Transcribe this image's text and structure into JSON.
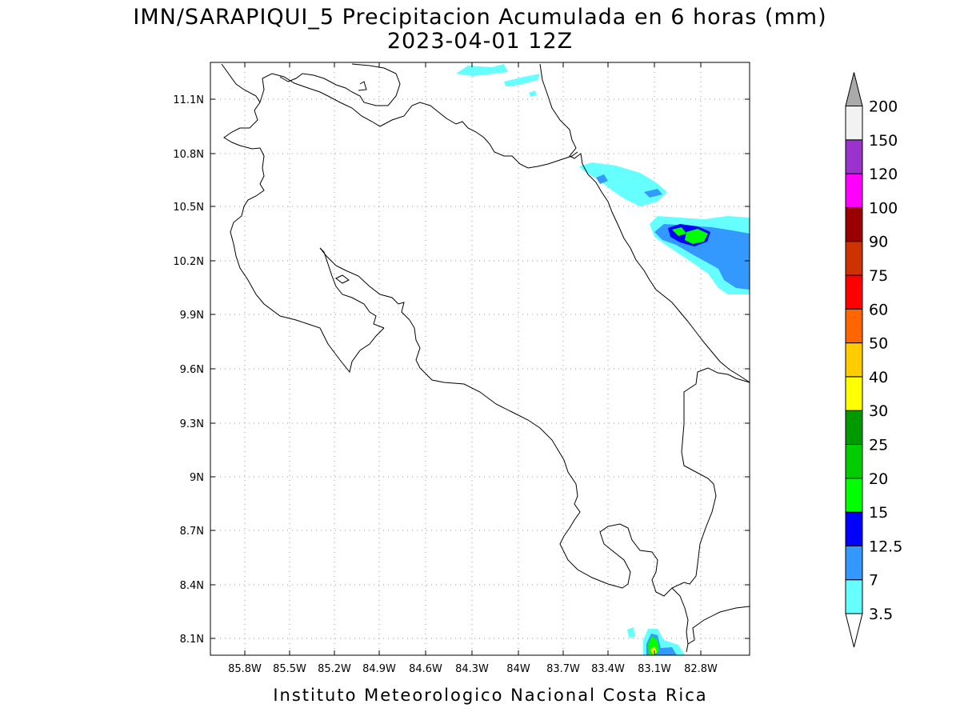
{
  "title": {
    "line1": "IMN/SARAPIQUI_5 Precipitacion Acumulada en 6 horas (mm)",
    "line2": "2023-04-01 12Z"
  },
  "axes": {
    "lon_ticks": [
      "85.8W",
      "85.5W",
      "85.2W",
      "84.9W",
      "84.6W",
      "84.3W",
      "84W",
      "83.7W",
      "83.4W",
      "83.1W",
      "82.8W"
    ],
    "lat_ticks": [
      "11.1N",
      "10.8N",
      "10.5N",
      "10.2N",
      "9.9N",
      "9.6N",
      "9.3N",
      "9N",
      "8.7N",
      "8.4N",
      "8.1N"
    ]
  },
  "colorbar": {
    "levels": [
      "3.5",
      "7",
      "12.5",
      "15",
      "20",
      "25",
      "30",
      "40",
      "50",
      "60",
      "75",
      "90",
      "100",
      "120",
      "150",
      "200"
    ],
    "colors": [
      "#66ffff",
      "#3399ff",
      "#0000ff",
      "#00ff00",
      "#00cc00",
      "#009900",
      "#ffff00",
      "#ffcc00",
      "#ff6600",
      "#ff0000",
      "#cc3300",
      "#990000",
      "#ff00ff",
      "#9933cc",
      "#f2f2f2"
    ],
    "under_color": "#ffffff",
    "over_color": "#aaaaaa"
  },
  "footer": "Instituto Meteorologico Nacional Costa Rica",
  "colors": {
    "coast": "#000000",
    "grid": "#9a9a9a"
  }
}
